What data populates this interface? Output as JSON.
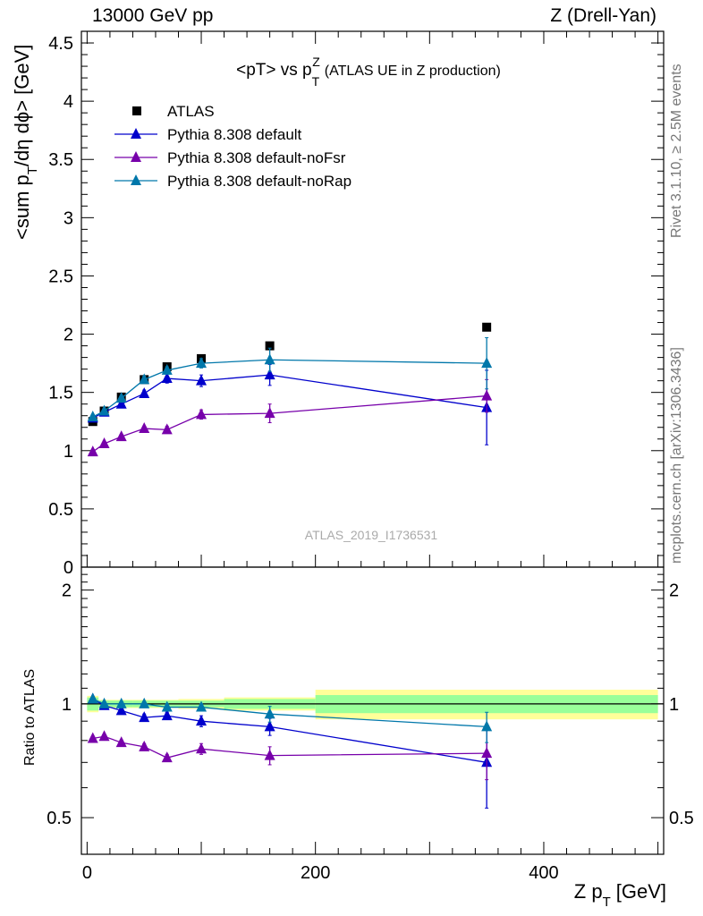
{
  "header": {
    "left": "13000 GeV pp",
    "right": "Z (Drell-Yan)"
  },
  "side_labels": {
    "rivet": "Rivet 3.1.10, ≥ 2.5M events",
    "mcplots": "mcplots.cern.ch [arXiv:1306.3436]"
  },
  "chart_data": {
    "type": "scatter",
    "title_main": "<pT> vs p",
    "title_sup": "Z",
    "title_sub": "T",
    "title_tail": "(ATLAS UE in Z production)",
    "watermark": "ATLAS_2019_I1736531",
    "ylabel_main": "<sum p",
    "ylabel_sub": "T",
    "ylabel_tail": "/dη dϕ> [GeV]",
    "xlabel_main": "Z p",
    "xlabel_sub": "T",
    "xlabel_tail": "[GeV]",
    "ratio_ylabel": "Ratio to ATLAS",
    "xlim": [
      -5,
      505
    ],
    "ylim": [
      0,
      4.6
    ],
    "ratio_ylim": [
      0.4,
      2.3
    ],
    "x_ticks": [
      "0",
      "200",
      "400"
    ],
    "y_ticks": [
      "0",
      "0.5",
      "1",
      "1.5",
      "2",
      "2.5",
      "3",
      "3.5",
      "4",
      "4.5"
    ],
    "ratio_y_ticks": [
      "0.5",
      "1",
      "2"
    ],
    "grid": false,
    "legend_position": "top-left",
    "x": [
      5,
      15,
      30,
      50,
      70,
      100,
      160,
      350
    ],
    "bands": {
      "edges": [
        0,
        10,
        20,
        40,
        60,
        80,
        120,
        200,
        500
      ],
      "green": [
        0.04,
        0.02,
        0.02,
        0.02,
        0.02,
        0.02,
        0.03,
        0.055
      ],
      "yellow": [
        0.05,
        0.025,
        0.025,
        0.025,
        0.025,
        0.03,
        0.04,
        0.09
      ]
    },
    "series": [
      {
        "name": "ATLAS",
        "marker": "square",
        "color": "#000000",
        "values": [
          1.25,
          1.34,
          1.46,
          1.61,
          1.72,
          1.79,
          1.9,
          2.06
        ]
      },
      {
        "name": "Pythia 8.308 default",
        "marker": "triangle",
        "color": "#0000cc",
        "values": [
          1.28,
          1.33,
          1.4,
          1.49,
          1.62,
          1.6,
          1.65,
          1.37
        ],
        "errors": [
          0.02,
          0.02,
          0.02,
          0.03,
          0.04,
          0.05,
          0.09,
          0.32
        ],
        "ratio": [
          1.03,
          0.99,
          0.96,
          0.92,
          0.93,
          0.9,
          0.87,
          0.7
        ],
        "ratio_errors": [
          0.01,
          0.01,
          0.015,
          0.02,
          0.02,
          0.03,
          0.045,
          0.17
        ]
      },
      {
        "name": "Pythia 8.308 default-noFsr",
        "marker": "triangle",
        "color": "#7700aa",
        "values": [
          0.99,
          1.06,
          1.12,
          1.19,
          1.18,
          1.31,
          1.32,
          1.47
        ],
        "errors": [
          0.02,
          0.02,
          0.02,
          0.02,
          0.03,
          0.04,
          0.08,
          0.14
        ],
        "ratio": [
          0.81,
          0.82,
          0.79,
          0.77,
          0.72,
          0.76,
          0.73,
          0.74
        ],
        "ratio_errors": [
          0.01,
          0.01,
          0.012,
          0.015,
          0.015,
          0.025,
          0.04,
          0.11
        ]
      },
      {
        "name": "Pythia 8.308 default-noRap",
        "marker": "triangle",
        "color": "#0077aa",
        "values": [
          1.29,
          1.34,
          1.45,
          1.61,
          1.69,
          1.75,
          1.78,
          1.75
        ],
        "errors": [
          0.02,
          0.02,
          0.02,
          0.03,
          0.03,
          0.04,
          0.1,
          0.22
        ],
        "ratio": [
          1.03,
          1.0,
          1.0,
          1.0,
          0.98,
          0.98,
          0.94,
          0.87
        ],
        "ratio_errors": [
          0.01,
          0.01,
          0.012,
          0.015,
          0.02,
          0.02,
          0.045,
          0.08
        ]
      }
    ]
  }
}
